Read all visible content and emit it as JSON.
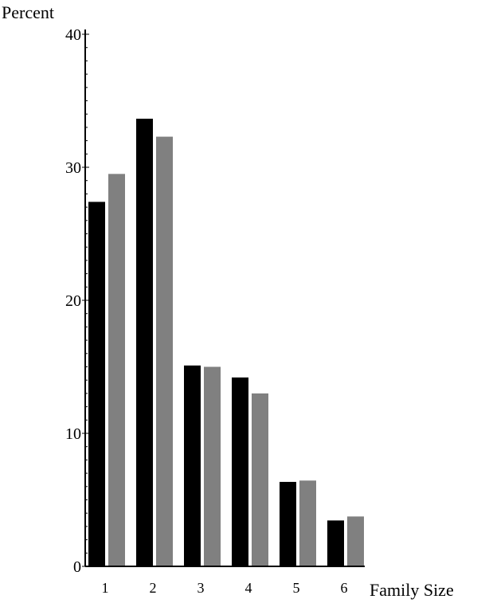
{
  "chart_data": {
    "type": "bar",
    "title": "",
    "xlabel": "Family Size",
    "ylabel": "Percent",
    "categories": [
      "1",
      "2",
      "3",
      "4",
      "5",
      "6"
    ],
    "series": [
      {
        "values": [
          27.4,
          33.65,
          15.1,
          14.2,
          6.35,
          3.45
        ],
        "color": "#000000"
      },
      {
        "values": [
          29.5,
          32.3,
          15.0,
          13.0,
          6.45,
          3.75
        ],
        "color": "#808080"
      }
    ],
    "ylim": [
      0,
      40
    ],
    "yticks": [
      0,
      10,
      20,
      30,
      40
    ],
    "yminor_step": 1,
    "grid": false,
    "legend": "none"
  }
}
